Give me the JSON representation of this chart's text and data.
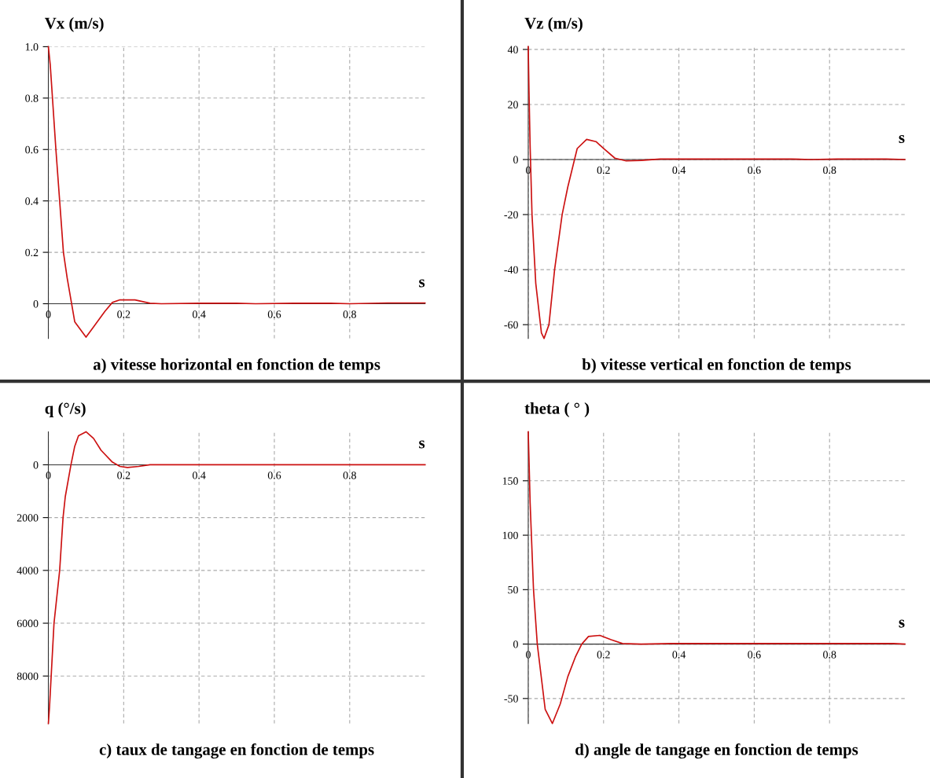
{
  "chart_data": [
    {
      "type": "line",
      "title": "a) vitesse horizontal en fonction de temps",
      "ylabel": "Vx (m/s)",
      "xlabel": "s",
      "grid": true,
      "xlim": [
        0,
        1
      ],
      "ylim": [
        -0.135,
        1.0
      ],
      "xticks": [
        0,
        0.2,
        0.4,
        0.6,
        0.8
      ],
      "yticks": [
        0,
        0.2,
        0.4,
        0.6,
        0.8,
        {
          "value": 1.0,
          "label": "1.0"
        }
      ],
      "x": [
        0,
        0.005,
        0.02,
        0.04,
        0.05,
        0.07,
        0.1,
        0.12,
        0.15,
        0.17,
        0.19,
        0.23,
        0.27,
        0.3,
        0.4,
        0.5,
        0.55,
        0.65,
        0.75,
        0.8,
        0.9,
        1.0
      ],
      "series": [
        {
          "color": "#cc1111",
          "values": [
            1.0,
            0.93,
            0.6,
            0.2,
            0.1,
            -0.07,
            -0.13,
            -0.09,
            -0.03,
            0.005,
            0.015,
            0.015,
            0.002,
            0,
            0.002,
            0.002,
            0,
            0.002,
            0.002,
            0,
            0.003,
            0.003
          ]
        }
      ]
    },
    {
      "type": "line",
      "title": "b) vitesse vertical en fonction de temps",
      "ylabel": "Vz (m/s)",
      "xlabel": "s",
      "grid": true,
      "xlim": [
        0,
        1
      ],
      "ylim": [
        -65,
        41
      ],
      "xticks": [
        0,
        0.2,
        0.4,
        0.6,
        0.8
      ],
      "yticks": [
        -60,
        -40,
        -20,
        0,
        20,
        40
      ],
      "x": [
        0,
        0.002,
        0.005,
        0.01,
        0.02,
        0.035,
        0.042,
        0.055,
        0.07,
        0.09,
        0.105,
        0.13,
        0.155,
        0.18,
        0.2,
        0.23,
        0.26,
        0.3,
        0.35,
        0.47,
        0.6,
        0.7,
        0.75,
        0.82,
        0.95,
        1.0
      ],
      "series": [
        {
          "color": "#cc1111",
          "values": [
            41,
            25,
            5,
            -20,
            -45,
            -63,
            -65,
            -60,
            -40,
            -20,
            -10,
            4,
            7.3,
            6.5,
            4,
            0.5,
            -0.5,
            -0.3,
            0.2,
            0.2,
            0.2,
            0.2,
            0,
            0.2,
            0.2,
            0
          ]
        }
      ]
    },
    {
      "type": "line",
      "title": "c) taux de tangage en fonction de temps",
      "ylabel": "q (°/s)",
      "xlabel": "s",
      "grid": true,
      "xlim": [
        0,
        1
      ],
      "ylim": [
        -9800,
        1250
      ],
      "xticks": [
        0,
        0.2,
        0.4,
        0.6,
        0.8
      ],
      "yticks": [
        {
          "value": -8000,
          "label": "8000"
        },
        {
          "value": -6000,
          "label": "6000"
        },
        {
          "value": -4000,
          "label": "4000"
        },
        {
          "value": -2000,
          "label": "2000"
        },
        0
      ],
      "x": [
        0,
        0.003,
        0.015,
        0.03,
        0.039,
        0.045,
        0.06,
        0.07,
        0.08,
        0.1,
        0.12,
        0.14,
        0.17,
        0.19,
        0.21,
        0.24,
        0.27,
        0.4,
        0.6,
        1.0
      ],
      "series": [
        {
          "color": "#cc1111",
          "values": [
            -9800,
            -9200,
            -6000,
            -4000,
            -2000,
            -1200,
            0,
            700,
            1100,
            1250,
            1000,
            550,
            100,
            -60,
            -100,
            -60,
            0,
            0,
            0,
            0
          ]
        }
      ]
    },
    {
      "type": "line",
      "title": "d) angle de tangage en fonction de temps",
      "ylabel": "theta ( ° )",
      "xlabel": "s",
      "grid": true,
      "xlim": [
        0,
        1
      ],
      "ylim": [
        -73,
        195
      ],
      "xticks": [
        0,
        0.2,
        0.4,
        0.6,
        0.8
      ],
      "yticks": [
        -50,
        0,
        50,
        100,
        150
      ],
      "x": [
        0,
        0.002,
        0.005,
        0.014,
        0.024,
        0.045,
        0.064,
        0.085,
        0.105,
        0.125,
        0.142,
        0.16,
        0.19,
        0.22,
        0.25,
        0.3,
        0.38,
        0.48,
        0.6,
        0.72,
        0.85,
        0.97,
        1.0
      ],
      "series": [
        {
          "color": "#cc1111",
          "values": [
            195,
            170,
            130,
            50,
            0,
            -60,
            -73,
            -55,
            -30,
            -12,
            0,
            7,
            8,
            4,
            0.5,
            0,
            0.5,
            0.5,
            0.5,
            0.5,
            0.5,
            0.5,
            0
          ]
        }
      ]
    }
  ]
}
